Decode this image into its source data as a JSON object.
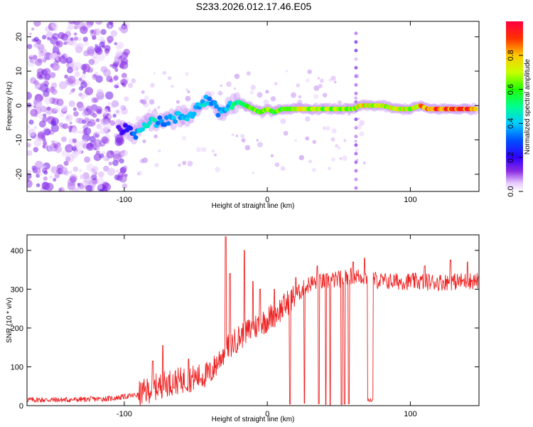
{
  "figure_title": "S233.2026.012.17.46.E05",
  "chart_data": [
    {
      "type": "heatmap",
      "title": "S233.2026.012.17.46.E05",
      "xlabel": "Height of straight line (km)",
      "ylabel": "Frequency (Hz)",
      "xlim": [
        -168,
        148
      ],
      "ylim": [
        -25,
        24.5
      ],
      "xticks": [
        -100,
        0,
        100
      ],
      "xtick_labels": [
        "-100",
        "0",
        "100"
      ],
      "yticks": [
        -20,
        -10,
        0,
        10,
        20
      ],
      "ytick_labels": [
        "-20",
        "-10",
        "0",
        "10",
        "20"
      ],
      "colorbar": {
        "label": "Normalized spectral amplitude",
        "range": [
          0,
          1
        ],
        "ticks": [
          0,
          0.2,
          0.4,
          0.6,
          0.8
        ],
        "tick_labels": [
          "0.0",
          "0.2",
          "0.4",
          "0.6",
          "0.8"
        ]
      },
      "ridge": {
        "description": "dominant frequency track (x km, Hz, amplitude)",
        "points": [
          [
            -104,
            -6,
            0.18
          ],
          [
            -100,
            -7,
            0.22
          ],
          [
            -95,
            -8,
            0.3
          ],
          [
            -90,
            -8,
            0.45
          ],
          [
            -86,
            -5,
            0.45
          ],
          [
            -80,
            -4,
            0.5
          ],
          [
            -75,
            -5,
            0.35
          ],
          [
            -70,
            -4,
            0.35
          ],
          [
            -65,
            -4,
            0.4
          ],
          [
            -60,
            -3,
            0.4
          ],
          [
            -55,
            -3,
            0.4
          ],
          [
            -50,
            -1,
            0.4
          ],
          [
            -45,
            1,
            0.45
          ],
          [
            -40,
            2,
            0.4
          ],
          [
            -35,
            -2,
            0.4
          ],
          [
            -30,
            -1,
            0.4
          ],
          [
            -25,
            0,
            0.5
          ],
          [
            -20,
            1,
            0.55
          ],
          [
            -15,
            0,
            0.6
          ],
          [
            -10,
            -1,
            0.65
          ],
          [
            -5,
            -2,
            0.65
          ],
          [
            0,
            -1,
            0.7
          ],
          [
            5,
            -2,
            0.6
          ],
          [
            10,
            -1,
            0.7
          ],
          [
            20,
            -1,
            0.75
          ],
          [
            30,
            -1,
            0.75
          ],
          [
            40,
            -1,
            0.7
          ],
          [
            50,
            -1,
            0.7
          ],
          [
            60,
            -1,
            0.7
          ],
          [
            65,
            0,
            0.8
          ],
          [
            70,
            0,
            0.8
          ],
          [
            80,
            0,
            0.75
          ],
          [
            90,
            -1,
            0.8
          ],
          [
            100,
            -1,
            0.75
          ],
          [
            107,
            0,
            0.85
          ],
          [
            112,
            -1,
            0.9
          ],
          [
            120,
            -1,
            0.95
          ],
          [
            130,
            -1,
            0.95
          ],
          [
            140,
            -1,
            0.95
          ],
          [
            146,
            -1,
            0.95
          ]
        ]
      }
    },
    {
      "type": "line",
      "xlabel": "Height of straight line (km)",
      "ylabel": "SNR (10 * v/v)",
      "xlim": [
        -168,
        148
      ],
      "ylim": [
        0,
        440
      ],
      "xticks": [
        -100,
        0,
        100
      ],
      "xtick_labels": [
        "-100",
        "0",
        "100"
      ],
      "yticks": [
        0,
        100,
        200,
        300,
        400
      ],
      "ytick_labels": [
        "0",
        "100",
        "200",
        "300",
        "400"
      ],
      "series": [
        {
          "name": "SNR",
          "color": "#ee2222",
          "trend": {
            "x": [
              -168,
              -140,
              -110,
              -90,
              -80,
              -70,
              -60,
              -50,
              -40,
              -30,
              -20,
              -10,
              0,
              10,
              20,
              30,
              40,
              50,
              60,
              70,
              80,
              100,
              120,
              148
            ],
            "y": [
              15,
              15,
              18,
              28,
              45,
              58,
              65,
              72,
              82,
              140,
              175,
              200,
              222,
              250,
              285,
              315,
              320,
              325,
              335,
              330,
              320,
              320,
              318,
              322
            ]
          },
          "peaks": [
            [
              -29,
              435
            ],
            [
              -26,
              340
            ],
            [
              -16,
              400
            ],
            [
              -10,
              320
            ],
            [
              -5,
              300
            ],
            [
              -73,
              155
            ],
            [
              -80,
              115
            ],
            [
              -55,
              120
            ],
            [
              5,
              300
            ],
            [
              20,
              330
            ],
            [
              35,
              360
            ],
            [
              60,
              370
            ],
            [
              68,
              380
            ],
            [
              110,
              360
            ],
            [
              128,
              375
            ],
            [
              140,
              370
            ]
          ],
          "dropouts": [
            [
              16,
              4
            ],
            [
              26,
              6
            ],
            [
              36,
              5
            ],
            [
              41,
              3
            ],
            [
              44,
              2
            ],
            [
              52,
              3
            ],
            [
              54,
              4
            ],
            [
              57,
              5
            ]
          ],
          "dropout_band": {
            "x": [
              70,
              74
            ],
            "y": 10
          }
        }
      ]
    }
  ]
}
